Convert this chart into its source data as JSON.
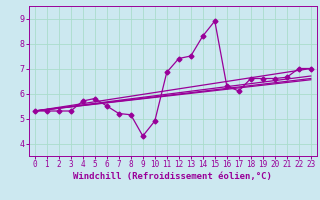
{
  "xlabel": "Windchill (Refroidissement éolien,°C)",
  "background_color": "#cce8f0",
  "line_color": "#990099",
  "xlim": [
    -0.5,
    23.5
  ],
  "ylim": [
    3.5,
    9.5
  ],
  "xticks": [
    0,
    1,
    2,
    3,
    4,
    5,
    6,
    7,
    8,
    9,
    10,
    11,
    12,
    13,
    14,
    15,
    16,
    17,
    18,
    19,
    20,
    21,
    22,
    23
  ],
  "yticks": [
    4,
    5,
    6,
    7,
    8,
    9
  ],
  "grid_color": "#aaddcc",
  "series": {
    "main": {
      "x": [
        0,
        1,
        2,
        3,
        4,
        5,
        6,
        7,
        8,
        9,
        10,
        11,
        12,
        13,
        14,
        15,
        16,
        17,
        18,
        19,
        20,
        21,
        22,
        23
      ],
      "y": [
        5.3,
        5.3,
        5.3,
        5.3,
        5.7,
        5.8,
        5.5,
        5.2,
        5.15,
        4.3,
        4.9,
        6.85,
        7.4,
        7.5,
        8.3,
        8.9,
        6.3,
        6.1,
        6.6,
        6.6,
        6.6,
        6.65,
        7.0,
        7.0
      ]
    },
    "line1": {
      "x": [
        0,
        23
      ],
      "y": [
        5.3,
        7.0
      ]
    },
    "line2": {
      "x": [
        0,
        23
      ],
      "y": [
        5.3,
        6.7
      ]
    },
    "line3": {
      "x": [
        0,
        23
      ],
      "y": [
        5.3,
        6.6
      ]
    },
    "line4": {
      "x": [
        0,
        23
      ],
      "y": [
        5.3,
        6.55
      ]
    }
  },
  "marker": "D",
  "markersize": 2.5,
  "linewidth": 0.9,
  "tick_fontsize": 5.5,
  "label_fontsize": 6.5
}
